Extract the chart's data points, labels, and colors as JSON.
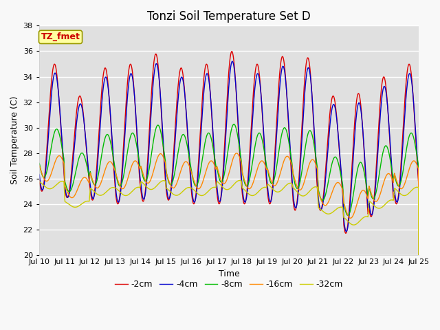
{
  "title": "Tonzi Soil Temperature Set D",
  "xlabel": "Time",
  "ylabel": "Soil Temperature (C)",
  "annotation": "TZ_fmet",
  "ylim": [
    20,
    38
  ],
  "yticks": [
    20,
    22,
    24,
    26,
    28,
    30,
    32,
    34,
    36,
    38
  ],
  "xtick_labels": [
    "Jul 10",
    "Jul 11",
    "Jul 12",
    "Jul 13",
    "Jul 14",
    "Jul 15",
    "Jul 16",
    "Jul 17",
    "Jul 18",
    "Jul 19",
    "Jul 20",
    "Jul 21",
    "Jul 22",
    "Jul 23",
    "Jul 24",
    "Jul 25"
  ],
  "line_colors": [
    "#dd0000",
    "#0000cc",
    "#00bb00",
    "#ff8800",
    "#cccc00"
  ],
  "line_labels": [
    "-2cm",
    "-4cm",
    "-8cm",
    "-16cm",
    "-32cm"
  ],
  "plot_bg": "#e0e0e0",
  "fig_bg": "#f8f8f8",
  "annotation_bg": "#ffffa0",
  "annotation_border": "#999900",
  "title_fontsize": 12,
  "label_fontsize": 9,
  "tick_fontsize": 8
}
